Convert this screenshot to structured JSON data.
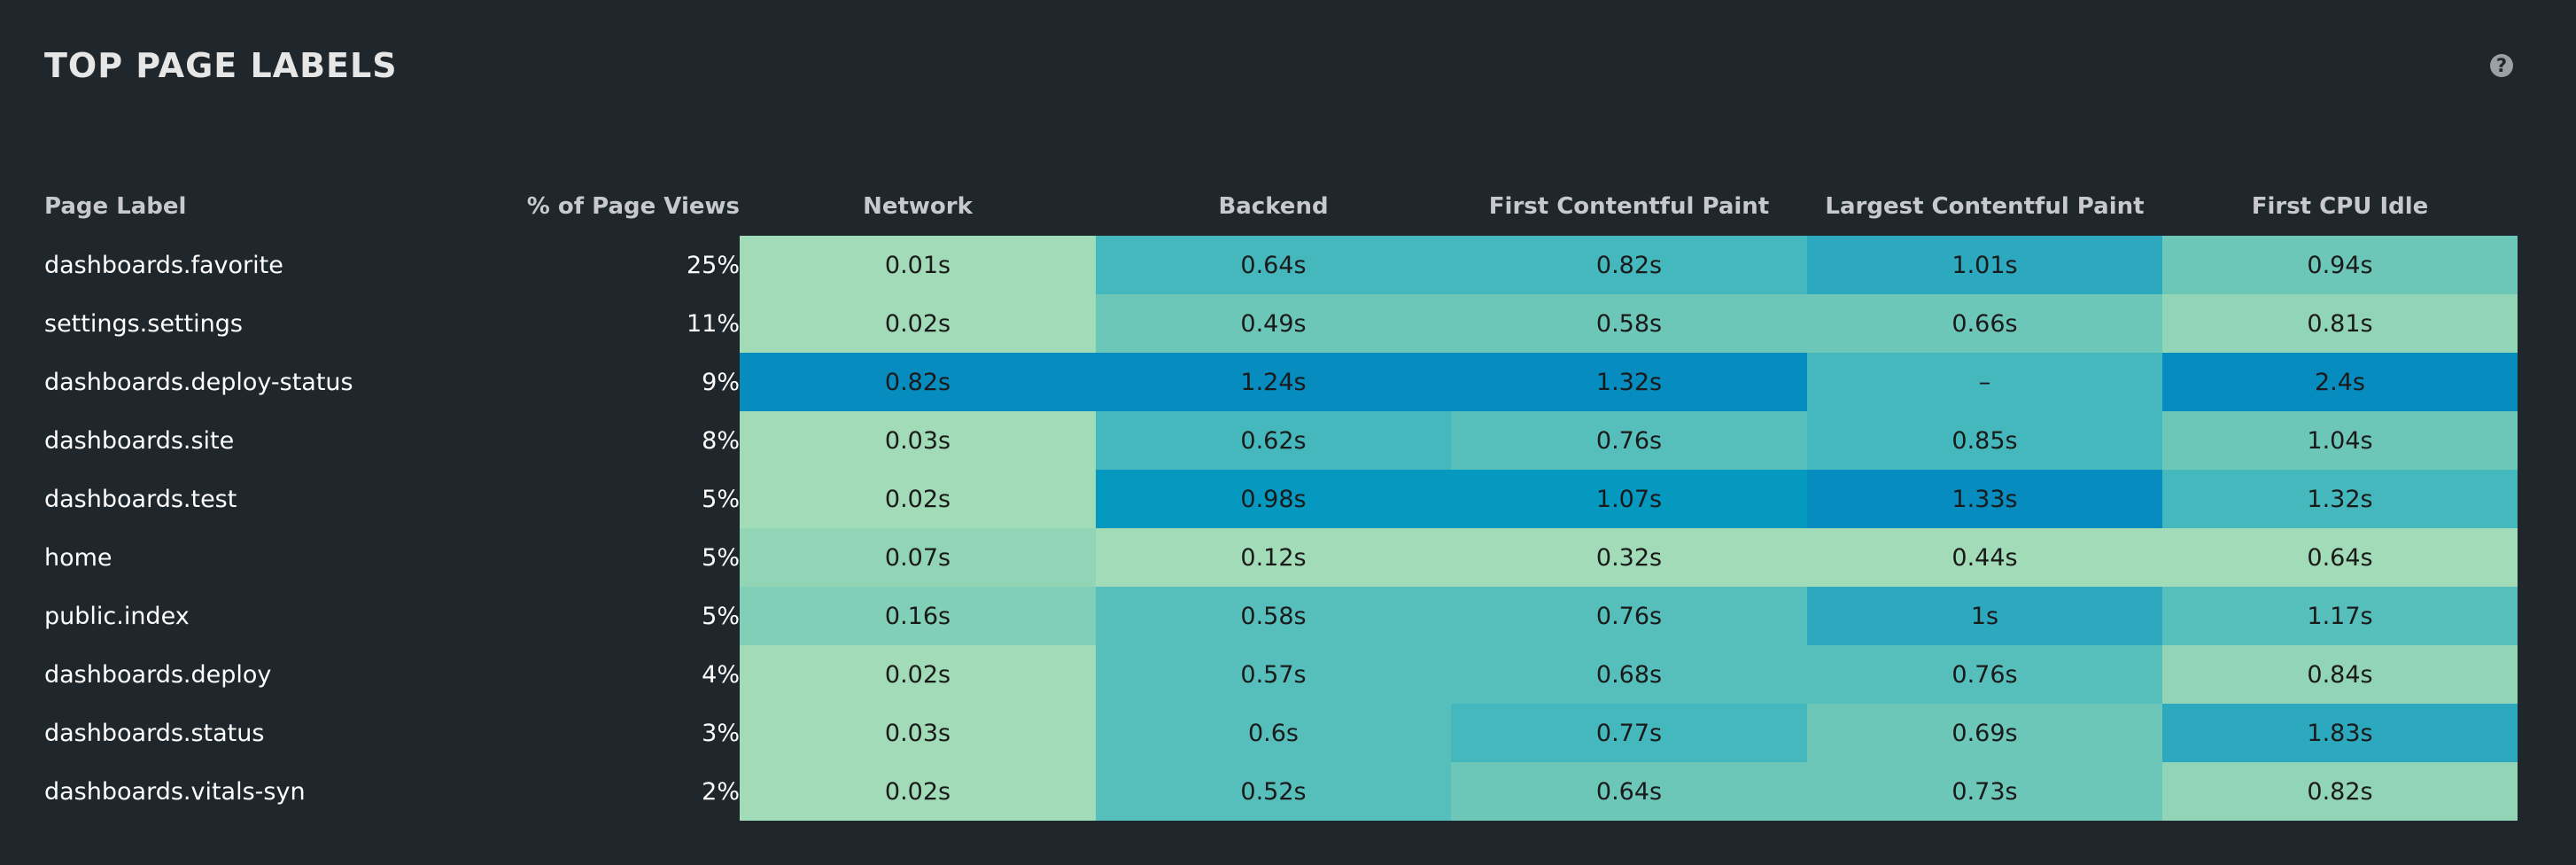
{
  "panel": {
    "title": "TOP PAGE LABELS",
    "help_icon": "question-circle-icon"
  },
  "colors": {
    "background": "#1f262c",
    "heat_scale": [
      "#a2dbb7",
      "#92d4b6",
      "#82cfb7",
      "#6dc7b8",
      "#56bfbb",
      "#45b8bd",
      "#2ca9be",
      "#0599bf",
      "#068cbf"
    ]
  },
  "table": {
    "columns": [
      "Page Label",
      "% of Page Views",
      "Network",
      "Backend",
      "First Contentful Paint",
      "Largest Contentful Paint",
      "First CPU Idle"
    ],
    "rows": [
      {
        "label": "dashboards.favorite",
        "views": "25%",
        "cells": [
          {
            "text": "0.01s",
            "color": "#a2dbb7"
          },
          {
            "text": "0.64s",
            "color": "#45b8bd"
          },
          {
            "text": "0.82s",
            "color": "#45b8bd"
          },
          {
            "text": "1.01s",
            "color": "#2ca9be"
          },
          {
            "text": "0.94s",
            "color": "#6dc7b8"
          }
        ]
      },
      {
        "label": "settings.settings",
        "views": "11%",
        "cells": [
          {
            "text": "0.02s",
            "color": "#a2dbb7"
          },
          {
            "text": "0.49s",
            "color": "#6dc7b8"
          },
          {
            "text": "0.58s",
            "color": "#6dc7b8"
          },
          {
            "text": "0.66s",
            "color": "#6dc7b8"
          },
          {
            "text": "0.81s",
            "color": "#92d4b6"
          }
        ]
      },
      {
        "label": "dashboards.deploy-status",
        "views": "9%",
        "cells": [
          {
            "text": "0.82s",
            "color": "#068cbf"
          },
          {
            "text": "1.24s",
            "color": "#068cbf"
          },
          {
            "text": "1.32s",
            "color": "#068cbf"
          },
          {
            "text": "–",
            "color": "#45b8bd"
          },
          {
            "text": "2.4s",
            "color": "#068cbf"
          }
        ]
      },
      {
        "label": "dashboards.site",
        "views": "8%",
        "cells": [
          {
            "text": "0.03s",
            "color": "#a2dbb7"
          },
          {
            "text": "0.62s",
            "color": "#45b8bd"
          },
          {
            "text": "0.76s",
            "color": "#56bfbb"
          },
          {
            "text": "0.85s",
            "color": "#45b8bd"
          },
          {
            "text": "1.04s",
            "color": "#6dc7b8"
          }
        ]
      },
      {
        "label": "dashboards.test",
        "views": "5%",
        "cells": [
          {
            "text": "0.02s",
            "color": "#a2dbb7"
          },
          {
            "text": "0.98s",
            "color": "#0599bf"
          },
          {
            "text": "1.07s",
            "color": "#0599bf"
          },
          {
            "text": "1.33s",
            "color": "#068cbf"
          },
          {
            "text": "1.32s",
            "color": "#45b8bd"
          }
        ]
      },
      {
        "label": "home",
        "views": "5%",
        "cells": [
          {
            "text": "0.07s",
            "color": "#92d4b6"
          },
          {
            "text": "0.12s",
            "color": "#a2dbb7"
          },
          {
            "text": "0.32s",
            "color": "#a2dbb7"
          },
          {
            "text": "0.44s",
            "color": "#a2dbb7"
          },
          {
            "text": "0.64s",
            "color": "#a2dbb7"
          }
        ]
      },
      {
        "label": "public.index",
        "views": "5%",
        "cells": [
          {
            "text": "0.16s",
            "color": "#82cfb7"
          },
          {
            "text": "0.58s",
            "color": "#56bfbb"
          },
          {
            "text": "0.76s",
            "color": "#56bfbb"
          },
          {
            "text": "1s",
            "color": "#2ca9be"
          },
          {
            "text": "1.17s",
            "color": "#56bfbb"
          }
        ]
      },
      {
        "label": "dashboards.deploy",
        "views": "4%",
        "cells": [
          {
            "text": "0.02s",
            "color": "#a2dbb7"
          },
          {
            "text": "0.57s",
            "color": "#56bfbb"
          },
          {
            "text": "0.68s",
            "color": "#56bfbb"
          },
          {
            "text": "0.76s",
            "color": "#56bfbb"
          },
          {
            "text": "0.84s",
            "color": "#92d4b6"
          }
        ]
      },
      {
        "label": "dashboards.status",
        "views": "3%",
        "cells": [
          {
            "text": "0.03s",
            "color": "#a2dbb7"
          },
          {
            "text": "0.6s",
            "color": "#56bfbb"
          },
          {
            "text": "0.77s",
            "color": "#45b8bd"
          },
          {
            "text": "0.69s",
            "color": "#6dc7b8"
          },
          {
            "text": "1.83s",
            "color": "#2ca9be"
          }
        ]
      },
      {
        "label": "dashboards.vitals-syn",
        "views": "2%",
        "cells": [
          {
            "text": "0.02s",
            "color": "#a2dbb7"
          },
          {
            "text": "0.52s",
            "color": "#56bfbb"
          },
          {
            "text": "0.64s",
            "color": "#6dc7b8"
          },
          {
            "text": "0.73s",
            "color": "#6dc7b8"
          },
          {
            "text": "0.82s",
            "color": "#92d4b6"
          }
        ]
      }
    ]
  }
}
